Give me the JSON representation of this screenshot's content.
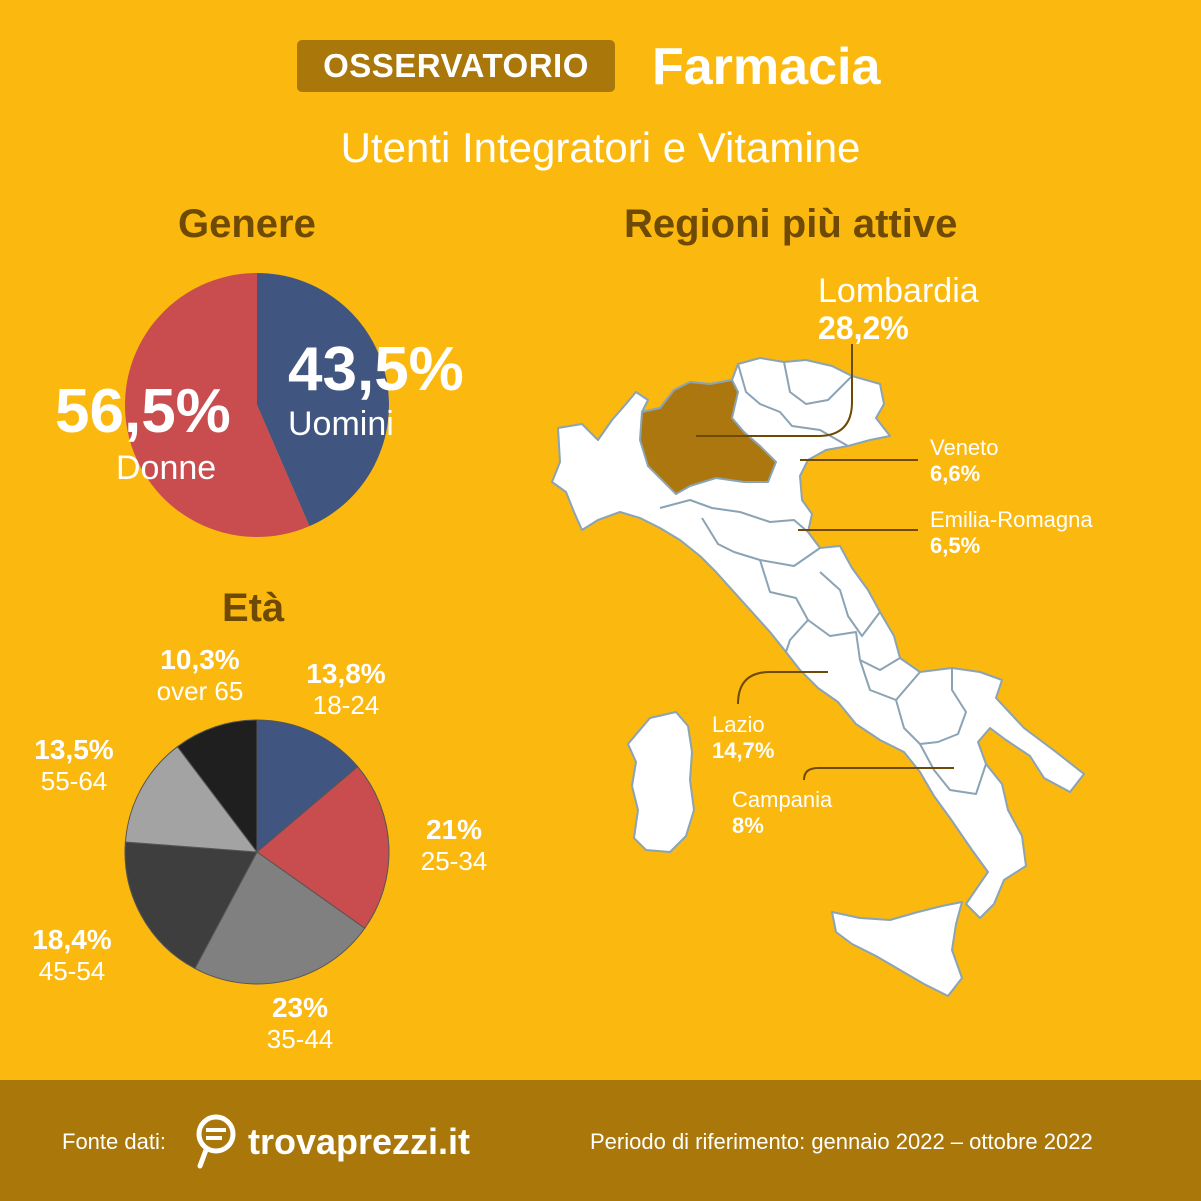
{
  "header": {
    "badge": "OSSERVATORIO",
    "brand": "Farmacia",
    "subtitle": "Utenti Integratori e Vitamine"
  },
  "gender": {
    "title": "Genere",
    "women_pct": "56,5%",
    "women_label": "Donne",
    "men_pct": "43,5%",
    "men_label": "Uomini"
  },
  "age": {
    "title": "Età"
  },
  "regions": {
    "title": "Regioni più attive",
    "lombardia": {
      "name": "Lombardia",
      "pct": "28,2%"
    },
    "veneto": {
      "name": "Veneto",
      "pct": "6,6%"
    },
    "emilia": {
      "name": "Emilia-Romagna",
      "pct": "6,5%"
    },
    "lazio": {
      "name": "Lazio",
      "pct": "14,7%"
    },
    "campania": {
      "name": "Campania",
      "pct": "8%"
    }
  },
  "footer": {
    "source_label": "Fonte dati:",
    "logo": "trovaprezzi.it",
    "period": "Periodo di riferimento: gennaio 2022 – ottobre 2022"
  },
  "colors": {
    "background": "#fbb80e",
    "footer": "#a9770a",
    "women": "#c94c4f",
    "men": "#405680",
    "highlight": "#ad7710"
  },
  "icons": [
    "trovaprezzi-logo-icon"
  ],
  "chart_data": [
    {
      "type": "pie",
      "title": "Genere",
      "categories": [
        "Uomini",
        "Donne"
      ],
      "values": [
        43.5,
        56.5
      ],
      "value_labels": [
        "43,5%",
        "56,5%"
      ],
      "colors": [
        "#405680",
        "#c94c4f"
      ]
    },
    {
      "type": "pie",
      "title": "Età",
      "categories": [
        "18-24",
        "25-34",
        "35-44",
        "45-54",
        "55-64",
        "over 65"
      ],
      "values": [
        13.8,
        21,
        23,
        18.4,
        13.5,
        10.3
      ],
      "value_labels": [
        "13,8%",
        "21%",
        "23%",
        "18,4%",
        "13,5%",
        "10,3%"
      ],
      "colors": [
        "#405680",
        "#c94c4f",
        "#808080",
        "#3e3e3e",
        "#a3a3a3",
        "#1f1f1f"
      ]
    },
    {
      "type": "table",
      "title": "Regioni più attive",
      "categories": [
        "Lombardia",
        "Veneto",
        "Emilia-Romagna",
        "Lazio",
        "Campania"
      ],
      "values": [
        28.2,
        6.6,
        6.5,
        14.7,
        8
      ]
    }
  ]
}
